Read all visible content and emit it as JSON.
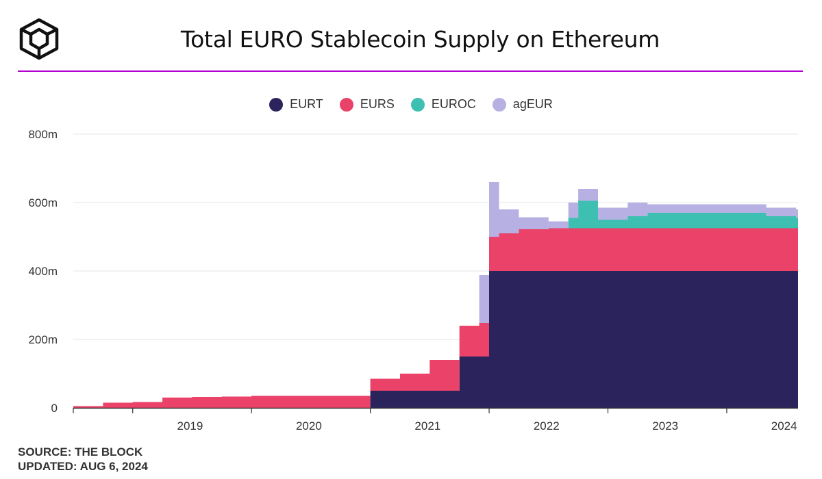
{
  "header": {
    "title": "Total EURO Stablecoin Supply on Ethereum"
  },
  "footer": {
    "source": "SOURCE: THE BLOCK",
    "updated": "UPDATED: AUG 6, 2024"
  },
  "colors": {
    "brand_rule": "#b100cf",
    "grid": "#e6e6e6",
    "axis": "#333333"
  },
  "chart_data": {
    "type": "area",
    "stacked": true,
    "title": "Total EURO Stablecoin Supply on Ethereum",
    "xlabel": "",
    "ylabel": "",
    "ylim": [
      0,
      800
    ],
    "unit": "m",
    "grid": true,
    "legend_position": "top",
    "x_ticks": [
      "2019",
      "2020",
      "2021",
      "2022",
      "2023",
      "2024"
    ],
    "y_ticks": [
      "0",
      "200m",
      "400m",
      "600m",
      "800m"
    ],
    "x": [
      "2018-07",
      "2018-10",
      "2019-01",
      "2019-04",
      "2019-07",
      "2019-10",
      "2020-01",
      "2020-04",
      "2020-07",
      "2020-10",
      "2021-01",
      "2021-04",
      "2021-07",
      "2021-10",
      "2021-11",
      "2021-12",
      "2022-01",
      "2022-02",
      "2022-04",
      "2022-07",
      "2022-09",
      "2022-10",
      "2022-12",
      "2023-03",
      "2023-05",
      "2023-08",
      "2023-11",
      "2024-02",
      "2024-05",
      "2024-08"
    ],
    "series": [
      {
        "name": "EURT",
        "color": "#2b245c",
        "values": [
          0,
          0,
          0,
          0,
          0,
          0,
          0,
          0,
          0,
          0,
          50,
          50,
          50,
          150,
          150,
          150,
          400,
          400,
          400,
          400,
          400,
          400,
          400,
          400,
          400,
          400,
          400,
          400,
          400,
          400
        ]
      },
      {
        "name": "EURS",
        "color": "#ea4268",
        "values": [
          5,
          15,
          17,
          30,
          32,
          33,
          35,
          35,
          35,
          35,
          35,
          50,
          90,
          90,
          90,
          98,
          100,
          110,
          122,
          125,
          125,
          125,
          125,
          125,
          125,
          125,
          125,
          125,
          125,
          125
        ]
      },
      {
        "name": "EUROC",
        "color": "#3dbfb2",
        "values": [
          0,
          0,
          0,
          0,
          0,
          0,
          0,
          0,
          0,
          0,
          0,
          0,
          0,
          0,
          0,
          0,
          0,
          0,
          0,
          0,
          30,
          80,
          25,
          35,
          45,
          45,
          45,
          45,
          35,
          30
        ]
      },
      {
        "name": "agEUR",
        "color": "#b7b0e2",
        "values": [
          0,
          0,
          0,
          0,
          0,
          0,
          0,
          0,
          0,
          0,
          0,
          0,
          0,
          0,
          0,
          140,
          160,
          70,
          35,
          20,
          45,
          35,
          35,
          40,
          25,
          25,
          25,
          25,
          25,
          25
        ]
      }
    ]
  }
}
